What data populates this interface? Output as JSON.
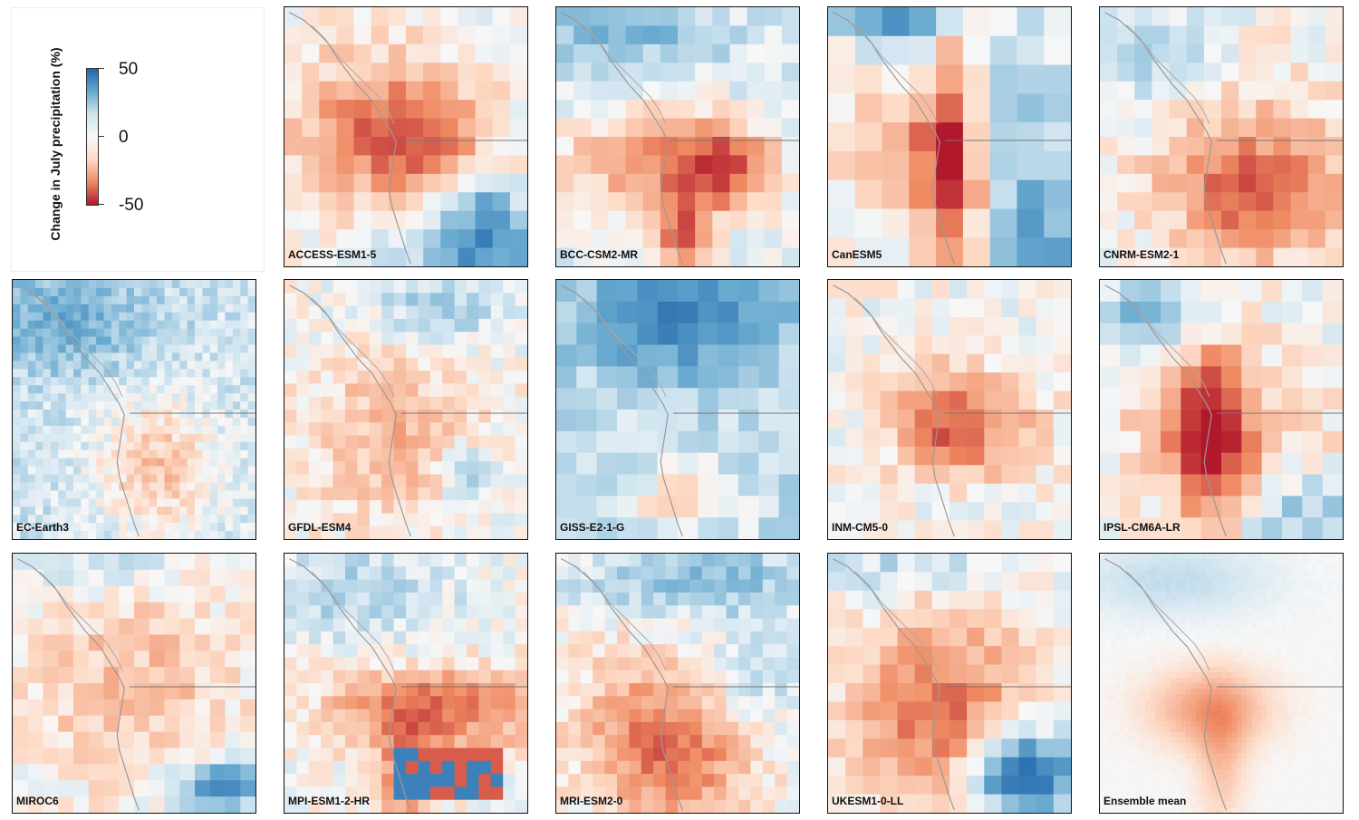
{
  "legend": {
    "title": "Change in July precipitation (%)",
    "ticks": [
      {
        "label": "50",
        "value": 50
      },
      {
        "label": "0",
        "value": 0
      },
      {
        "label": "-50",
        "value": -50
      }
    ],
    "colors": {
      "high": "#2166ac",
      "mid": "#f7f7f7",
      "low": "#b2182b"
    }
  },
  "panels": [
    {
      "id": "access",
      "label": "ACCESS-ESM1-5",
      "seed": 11,
      "grid": 14,
      "pattern": "access"
    },
    {
      "id": "bcc",
      "label": "BCC-CSM2-MR",
      "seed": 23,
      "grid": 14,
      "pattern": "bcc"
    },
    {
      "id": "canesm",
      "label": "CanESM5",
      "seed": 5,
      "grid": 9,
      "pattern": "canesm"
    },
    {
      "id": "cnrm",
      "label": "CNRM-ESM2-1",
      "seed": 31,
      "grid": 14,
      "pattern": "cnrm"
    },
    {
      "id": "ecearth",
      "label": "EC-Earth3",
      "seed": 47,
      "grid": 32,
      "pattern": "ecearth"
    },
    {
      "id": "gfdl",
      "label": "GFDL-ESM4",
      "seed": 53,
      "grid": 20,
      "pattern": "gfdl"
    },
    {
      "id": "giss",
      "label": "GISS-E2-1-G",
      "seed": 61,
      "grid": 12,
      "pattern": "giss"
    },
    {
      "id": "inm",
      "label": "INM-CM5-0",
      "seed": 71,
      "grid": 14,
      "pattern": "inm"
    },
    {
      "id": "ipsl",
      "label": "IPSL-CM6A-LR",
      "seed": 83,
      "grid": 12,
      "pattern": "ipsl"
    },
    {
      "id": "miroc",
      "label": "MIROC6",
      "seed": 97,
      "grid": 16,
      "pattern": "miroc"
    },
    {
      "id": "mpi",
      "label": "MPI-ESM1-2-HR",
      "seed": 101,
      "grid": 20,
      "pattern": "mpi"
    },
    {
      "id": "mri",
      "label": "MRI-ESM2-0",
      "seed": 113,
      "grid": 20,
      "pattern": "mri"
    },
    {
      "id": "ukesm",
      "label": "UKESM1-0-LL",
      "seed": 127,
      "grid": 14,
      "pattern": "ukesm"
    },
    {
      "id": "mean",
      "label": "Ensemble mean",
      "seed": 131,
      "grid": 48,
      "pattern": "mean"
    }
  ]
}
